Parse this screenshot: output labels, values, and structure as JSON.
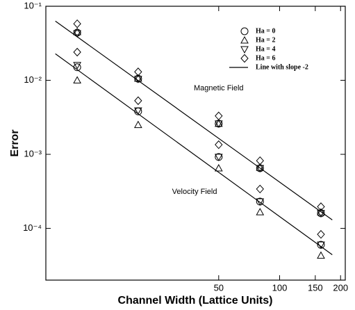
{
  "chart_data": {
    "type": "scatter",
    "x_label": "Channel Width (Lattice Units)",
    "y_label": "Error",
    "xlog": true,
    "ylog": true,
    "xlim": [
      7,
      211
    ],
    "ylim": [
      2e-05,
      0.1
    ],
    "xticks": [
      50,
      100,
      150,
      200
    ],
    "yticks": [
      {
        "value": 0.1,
        "label": "10⁻¹"
      },
      {
        "value": 0.01,
        "label": "10⁻²"
      },
      {
        "value": 0.001,
        "label": "10⁻³"
      },
      {
        "value": 0.0001,
        "label": "10⁻⁴"
      }
    ],
    "legend": "upper right",
    "annotations": [
      {
        "text": "Magnetic Field",
        "x": 50,
        "y": 0.0078
      },
      {
        "text": "Velocity Field",
        "x": 38,
        "y": 0.00031
      }
    ],
    "series": [
      {
        "name": "Ha = 0",
        "marker": "circle",
        "color": "#000000",
        "x": [
          10,
          20,
          50,
          80,
          160,
          10,
          20,
          50,
          80,
          160
        ],
        "values": [
          0.044,
          0.0105,
          0.0026,
          0.00065,
          0.00016,
          0.015,
          0.0038,
          0.00092,
          0.00023,
          6e-05
        ]
      },
      {
        "name": "Ha = 2",
        "marker": "triangle",
        "color": "#000000",
        "x": [
          10,
          20,
          50,
          80,
          160,
          10,
          20,
          50,
          80,
          160
        ],
        "values": [
          0.045,
          0.0106,
          0.0026,
          0.00066,
          0.000165,
          0.01,
          0.0025,
          0.00065,
          0.000166,
          4.3e-05
        ]
      },
      {
        "name": "Ha = 4",
        "marker": "triangle-down",
        "color": "#000000",
        "x": [
          10,
          20,
          50,
          80,
          160,
          10,
          20,
          50,
          80,
          160
        ],
        "values": [
          0.043,
          0.0104,
          0.0026,
          0.00065,
          0.00016,
          0.016,
          0.0039,
          0.00092,
          0.00023,
          6e-05
        ]
      },
      {
        "name": "Ha = 6",
        "marker": "diamond",
        "color": "#000000",
        "x": [
          10,
          20,
          50,
          80,
          160,
          10,
          20,
          50,
          80,
          160
        ],
        "values": [
          0.058,
          0.013,
          0.0033,
          0.00082,
          0.000196,
          0.024,
          0.0053,
          0.00135,
          0.00034,
          8.3e-05
        ]
      },
      {
        "name": "Line with slope -2",
        "marker": "line",
        "color": "#000000",
        "x": [
          7.8,
          182,
          null,
          7.8,
          182
        ],
        "values": [
          0.063,
          0.00013,
          null,
          0.0228,
          4.4e-05
        ]
      }
    ]
  }
}
